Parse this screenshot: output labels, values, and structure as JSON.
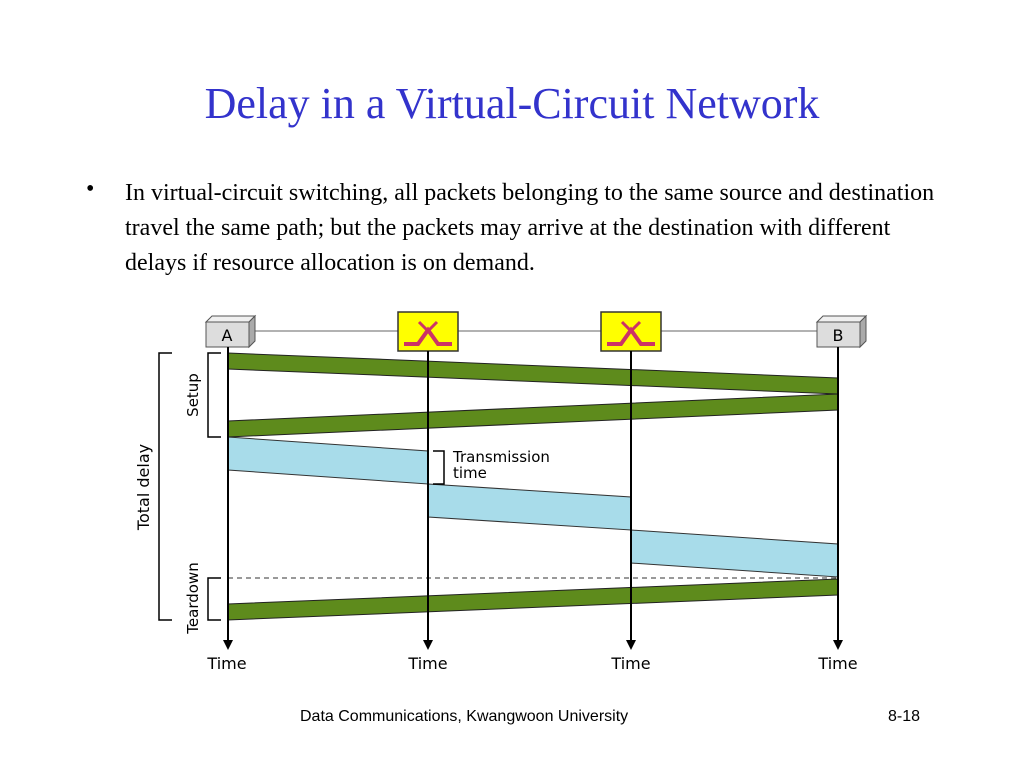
{
  "slide": {
    "title": "Delay in a Virtual-Circuit Network",
    "bullet": "•",
    "body_text": "In virtual-circuit switching, all packets belonging to the same source and destination travel the same path; but the packets  may arrive at the destination with different delays if resource allocation is on demand.",
    "footer": "Data Communications, Kwangwoon University",
    "page_number": "8-18"
  },
  "diagram": {
    "station_a": "A",
    "station_b": "B",
    "time_label": "Time",
    "setup_label": "Setup",
    "teardown_label": "Teardown",
    "total_delay_label": "Total delay",
    "transmission_label_1": "Transmission",
    "transmission_label_2": "time",
    "colors": {
      "control_packet": "#5e8b1c",
      "data_packet": "#a8dcea",
      "switch_fill": "#ffff00",
      "switch_icon": "#cc3366",
      "node_box": "#dddddd"
    }
  }
}
